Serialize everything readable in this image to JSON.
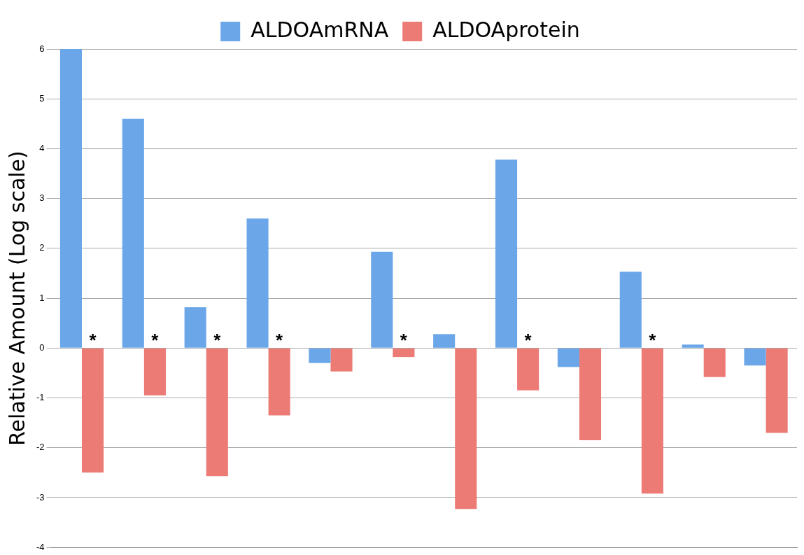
{
  "chart_data": {
    "type": "bar",
    "ylabel": "Relative Amount (Log scale)",
    "categories": [
      null,
      null,
      null,
      null,
      null,
      null,
      null,
      null,
      null,
      null,
      null,
      null
    ],
    "series": [
      {
        "name": "ALDOAmRNA",
        "color": "#6aa6e8",
        "values": [
          6.0,
          4.6,
          0.82,
          2.6,
          -0.3,
          1.93,
          0.28,
          3.78,
          -0.38,
          1.53,
          0.07,
          -0.35
        ]
      },
      {
        "name": "ALDOAprotein",
        "color": "#ec7b76",
        "values": [
          -2.5,
          -0.95,
          -2.57,
          -1.35,
          -0.47,
          -0.18,
          -3.23,
          -0.85,
          -1.85,
          -2.92,
          -0.58,
          -1.7
        ],
        "value_labels": [
          "*",
          "*",
          "*",
          "*",
          null,
          "*",
          null,
          "*",
          null,
          "*",
          null,
          null
        ]
      }
    ],
    "ylim": [
      -4,
      6
    ],
    "yticks": [
      -4,
      -3,
      -2,
      -1,
      0,
      1,
      2,
      3,
      4,
      5,
      6
    ],
    "grid": "y",
    "legend": "top",
    "tick_labels": "y"
  }
}
